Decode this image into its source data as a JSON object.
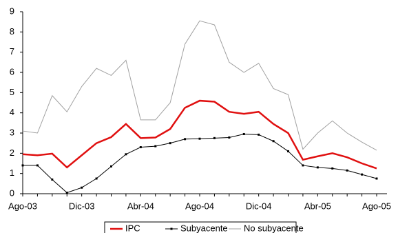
{
  "chart_data": {
    "type": "line",
    "categories": [
      "Ago-03",
      null,
      null,
      null,
      "Dic-03",
      null,
      null,
      null,
      "Abr-04",
      null,
      null,
      null,
      "Ago-04",
      null,
      null,
      null,
      "Dic-04",
      null,
      null,
      null,
      "Abr-05",
      null,
      null,
      null,
      "Ago-05"
    ],
    "series": [
      {
        "name": "IPC",
        "color": "#e01010",
        "values": [
          1.95,
          1.9,
          1.98,
          1.3,
          1.9,
          2.5,
          2.8,
          3.45,
          2.75,
          2.78,
          3.2,
          4.25,
          4.6,
          4.55,
          4.05,
          3.95,
          4.05,
          3.45,
          3.0,
          1.68,
          1.85,
          2.0,
          1.8,
          1.5,
          1.25
        ]
      },
      {
        "name": "Subyacente",
        "color": "#000000",
        "values": [
          1.4,
          1.4,
          0.7,
          0.05,
          0.3,
          0.75,
          1.35,
          1.95,
          2.3,
          2.35,
          2.5,
          2.7,
          2.72,
          2.75,
          2.78,
          2.95,
          2.92,
          2.6,
          2.1,
          1.4,
          1.3,
          1.25,
          1.15,
          0.95,
          0.75
        ]
      },
      {
        "name": "No subyacente",
        "color": "#a0a0a0",
        "values": [
          3.1,
          3.0,
          4.85,
          4.05,
          5.3,
          6.2,
          5.85,
          6.6,
          3.65,
          3.65,
          4.5,
          7.4,
          8.55,
          8.35,
          6.5,
          6.0,
          6.45,
          5.2,
          4.9,
          2.2,
          3.0,
          3.6,
          3.0,
          2.55,
          2.15
        ]
      }
    ],
    "ylim": [
      0,
      9
    ],
    "yticks": [
      0,
      1,
      2,
      3,
      4,
      5,
      6,
      7,
      8,
      9
    ],
    "legend": "bottom"
  }
}
